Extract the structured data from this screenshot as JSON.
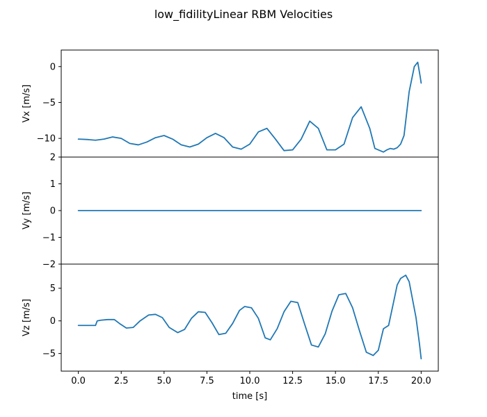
{
  "figure": {
    "title": "low_fidilityLinear RBM Velocities",
    "line_color": "#1f77b4"
  },
  "chart_data": [
    {
      "type": "line",
      "ylabel": "Vx [m/s]",
      "xlabel": "",
      "xlim": [
        -1.0,
        21.0
      ],
      "ylim": [
        -12.6,
        2.3
      ],
      "yticks": [
        0,
        -5,
        -10
      ],
      "ytick_labels": [
        "0",
        "−5",
        "−10"
      ],
      "grid": false,
      "x": [
        0.0,
        0.5,
        1.0,
        1.5,
        2.0,
        2.5,
        3.0,
        3.5,
        4.0,
        4.5,
        5.0,
        5.5,
        6.0,
        6.5,
        7.0,
        7.5,
        8.0,
        8.5,
        9.0,
        9.5,
        10.0,
        10.5,
        11.0,
        11.5,
        12.0,
        12.5,
        13.0,
        13.5,
        14.0,
        14.5,
        15.0,
        15.5,
        16.0,
        16.5,
        17.0,
        17.3,
        17.6,
        17.8,
        18.0,
        18.2,
        18.4,
        18.6,
        18.8,
        19.0,
        19.3,
        19.6,
        19.8,
        19.95,
        20.0
      ],
      "y": [
        -10.1,
        -10.15,
        -10.25,
        -10.1,
        -9.8,
        -10.0,
        -10.7,
        -10.9,
        -10.5,
        -9.9,
        -9.6,
        -10.1,
        -10.9,
        -11.2,
        -10.8,
        -9.9,
        -9.3,
        -9.9,
        -11.2,
        -11.5,
        -10.8,
        -9.1,
        -8.6,
        -10.1,
        -11.7,
        -11.6,
        -10.1,
        -7.6,
        -8.6,
        -11.6,
        -11.6,
        -10.8,
        -7.1,
        -5.6,
        -8.6,
        -11.4,
        -11.7,
        -11.9,
        -11.6,
        -11.4,
        -11.5,
        -11.3,
        -10.8,
        -9.6,
        -3.5,
        0.0,
        0.6,
        -1.5,
        -2.3
      ]
    },
    {
      "type": "line",
      "ylabel": "Vy [m/s]",
      "xlabel": "",
      "xlim": [
        -1.0,
        21.0
      ],
      "ylim": [
        -2.0,
        2.0
      ],
      "yticks": [
        2,
        1,
        0,
        -1,
        -2
      ],
      "ytick_labels": [
        "2",
        "1",
        "0",
        "−1",
        "−2"
      ],
      "grid": false,
      "x": [
        0.0,
        20.0
      ],
      "y": [
        0.0,
        0.0
      ]
    },
    {
      "type": "line",
      "ylabel": "Vz [m/s]",
      "xlabel": "time [s]",
      "xlim": [
        -1.0,
        21.0
      ],
      "ylim": [
        -7.7,
        8.7
      ],
      "yticks": [
        5,
        0,
        -5
      ],
      "ytick_labels": [
        "5",
        "0",
        "−5"
      ],
      "xticks": [
        0.0,
        2.5,
        5.0,
        7.5,
        10.0,
        12.5,
        15.0,
        17.5,
        20.0
      ],
      "xtick_labels": [
        "0.0",
        "2.5",
        "5.0",
        "7.5",
        "10.0",
        "12.5",
        "15.0",
        "17.5",
        "20.0"
      ],
      "grid": false,
      "x": [
        0.0,
        0.5,
        1.0,
        1.1,
        1.3,
        1.7,
        2.1,
        2.4,
        2.8,
        3.2,
        3.6,
        4.1,
        4.5,
        4.9,
        5.3,
        5.8,
        6.2,
        6.6,
        7.0,
        7.4,
        7.8,
        8.2,
        8.6,
        9.0,
        9.4,
        9.7,
        10.1,
        10.5,
        10.9,
        11.2,
        11.6,
        12.0,
        12.4,
        12.8,
        13.2,
        13.6,
        14.0,
        14.4,
        14.8,
        15.2,
        15.6,
        16.0,
        16.4,
        16.8,
        17.2,
        17.5,
        17.8,
        18.1,
        18.4,
        18.6,
        18.8,
        19.1,
        19.3,
        19.7,
        19.9,
        20.0
      ],
      "y": [
        -0.7,
        -0.7,
        -0.7,
        0.0,
        0.1,
        0.2,
        0.2,
        -0.4,
        -1.1,
        -1.0,
        0.0,
        0.9,
        1.0,
        0.5,
        -1.0,
        -1.8,
        -1.3,
        0.4,
        1.4,
        1.3,
        -0.3,
        -2.1,
        -1.9,
        -0.4,
        1.6,
        2.2,
        2.0,
        0.4,
        -2.6,
        -2.9,
        -1.2,
        1.4,
        3.0,
        2.8,
        -0.5,
        -3.7,
        -4.0,
        -2.0,
        1.5,
        4.0,
        4.2,
        2.0,
        -1.5,
        -4.8,
        -5.3,
        -4.5,
        -1.2,
        -0.7,
        3.0,
        5.5,
        6.5,
        7.0,
        6.0,
        0.5,
        -3.5,
        -5.8
      ]
    }
  ]
}
